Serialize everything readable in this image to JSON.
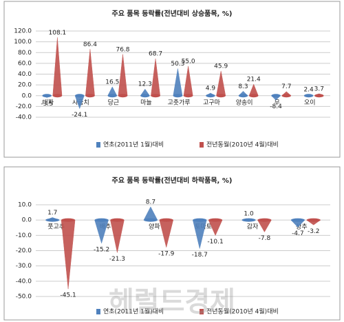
{
  "chart_data": [
    {
      "type": "bar",
      "title": "주요 품목 등락률(전년대비 상승품목, %)",
      "categories": [
        "대파",
        "시금치",
        "당근",
        "마늘",
        "고춧가루",
        "고구마",
        "양송이",
        "무",
        "오이"
      ],
      "series": [
        {
          "name": "연초(2011년 1월)대비",
          "color": "#4f81bd",
          "values": [
            -3.5,
            -24.1,
            16.5,
            12.3,
            50.3,
            4.9,
            8.3,
            -8.4,
            2.4
          ],
          "value_labels": [
            "-3.5",
            "-24.1",
            "16.5",
            "12.3",
            "50.3",
            "4.9",
            "8.3",
            "-8.4",
            "2.4"
          ]
        },
        {
          "name": "전년동월(2010년 4월)대비",
          "color": "#c0504d",
          "values": [
            108.1,
            86.4,
            76.8,
            68.7,
            55.0,
            45.9,
            21.4,
            7.7,
            3.7
          ],
          "value_labels": [
            "108.1",
            "86.4",
            "76.8",
            "68.7",
            "55.0",
            "45.9",
            "21.4",
            "7.7",
            "3.7"
          ]
        }
      ],
      "ylim": [
        -40,
        120
      ],
      "yticks": [
        {
          "value": -40,
          "label": "-40.0"
        },
        {
          "value": -20,
          "label": "-20.0"
        },
        {
          "value": 0,
          "label": "0.0"
        },
        {
          "value": 20,
          "label": "20.0"
        },
        {
          "value": 40,
          "label": "40.0"
        },
        {
          "value": 60,
          "label": "60.0"
        },
        {
          "value": 80,
          "label": "80.0"
        },
        {
          "value": 100,
          "label": "100.0"
        },
        {
          "value": 120,
          "label": "120.0"
        }
      ],
      "grid": true
    },
    {
      "type": "bar",
      "title": "주요 품목 등락률(전년대비 하락품목, %)",
      "categories": [
        "풋고추",
        "배추",
        "양파",
        "토마토",
        "감자",
        "상추"
      ],
      "series": [
        {
          "name": "연초(2011년 1월)대비",
          "color": "#4f81bd",
          "values": [
            1.7,
            -15.2,
            8.7,
            -18.7,
            1.0,
            -4.7
          ],
          "value_labels": [
            "1.7",
            "-15.2",
            "8.7",
            "-18.7",
            "1.0",
            "-4.7"
          ]
        },
        {
          "name": "전년동월(2010년 4월)대비",
          "color": "#c0504d",
          "values": [
            -45.1,
            -21.3,
            -17.9,
            -10.1,
            -7.8,
            -3.2
          ],
          "value_labels": [
            "-45.1",
            "-21.3",
            "-17.9",
            "-10.1",
            "-7.8",
            "-3.2"
          ]
        }
      ],
      "ylim": [
        -50,
        10
      ],
      "yticks": [
        {
          "value": -50,
          "label": "-50.0"
        },
        {
          "value": -40,
          "label": "-40.0"
        },
        {
          "value": -30,
          "label": "-30.0"
        },
        {
          "value": -20,
          "label": "-20.0"
        },
        {
          "value": -10,
          "label": "-10.0"
        },
        {
          "value": 0,
          "label": "0.0"
        },
        {
          "value": 10,
          "label": "10.0"
        }
      ],
      "grid": true
    }
  ],
  "watermark": "헤럴드경제"
}
